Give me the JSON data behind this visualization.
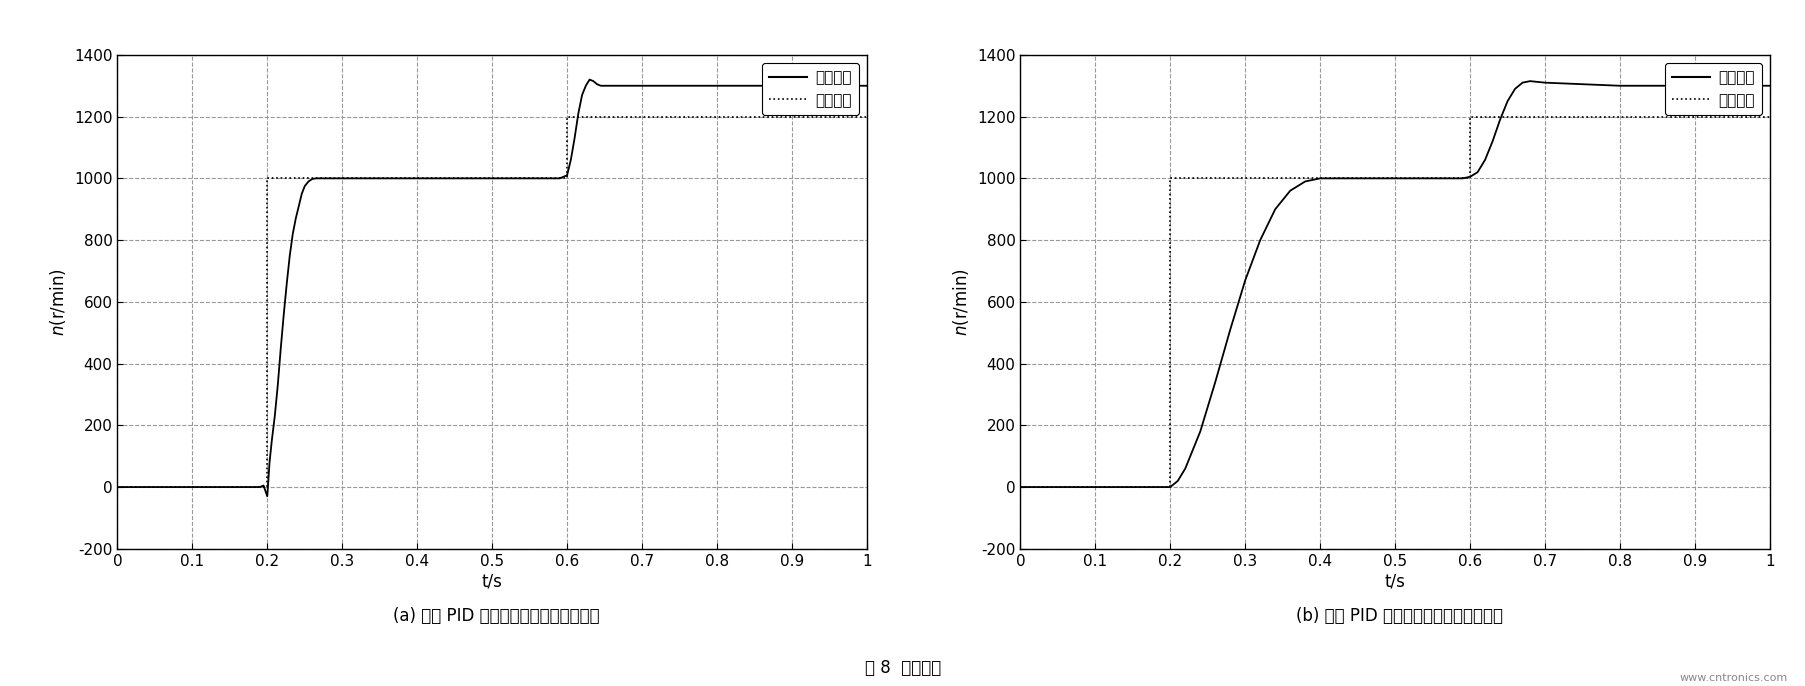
{
  "fig_width": 18.06,
  "fig_height": 6.86,
  "background_color": "#ffffff",
  "grid_color": "#aaaaaa",
  "line_color": "#000000",
  "xlim": [
    0,
    1
  ],
  "ylim": [
    -200,
    1400
  ],
  "xticks": [
    0,
    0.1,
    0.2,
    0.3,
    0.4,
    0.5,
    0.6,
    0.7,
    0.8,
    0.9,
    1
  ],
  "yticks": [
    -200,
    0,
    200,
    400,
    600,
    800,
    1000,
    1200,
    1400
  ],
  "xlabel": "t/s",
  "legend_labels": [
    "响应曲线",
    "输入信号"
  ],
  "caption_a": "(a) 常规 PID 控制下的系统跟踪特能曲线",
  "caption_b": "(b) 模糊 PID 控制下的系统跟踪特能曲线",
  "fig_caption": "图 8  实验结果",
  "website": "www.cntronics.com",
  "plot_a_response_x": [
    0,
    0.19,
    0.195,
    0.2,
    0.203,
    0.206,
    0.21,
    0.214,
    0.218,
    0.222,
    0.226,
    0.23,
    0.234,
    0.238,
    0.242,
    0.246,
    0.25,
    0.255,
    0.26,
    0.265,
    0.27,
    0.275,
    0.28,
    0.3,
    0.4,
    0.5,
    0.59,
    0.6,
    0.605,
    0.61,
    0.615,
    0.62,
    0.625,
    0.63,
    0.635,
    0.64,
    0.645,
    0.65,
    0.66,
    0.67,
    0.7,
    0.8,
    0.9,
    1.0
  ],
  "plot_a_response_y": [
    0,
    0,
    5,
    -30,
    80,
    150,
    230,
    330,
    450,
    560,
    660,
    750,
    820,
    870,
    910,
    950,
    975,
    990,
    998,
    1000,
    1000,
    1000,
    1000,
    1000,
    1000,
    1000,
    1000,
    1010,
    1060,
    1130,
    1210,
    1270,
    1300,
    1320,
    1315,
    1305,
    1300,
    1300,
    1300,
    1300,
    1300,
    1300,
    1300,
    1300
  ],
  "plot_a_input_x": [
    0,
    0.2,
    0.2,
    0.6,
    0.6,
    1.0
  ],
  "plot_a_input_y": [
    0,
    0,
    1000,
    1000,
    1200,
    1200
  ],
  "plot_b_response_x": [
    0,
    0.19,
    0.2,
    0.21,
    0.22,
    0.24,
    0.26,
    0.28,
    0.3,
    0.32,
    0.34,
    0.36,
    0.38,
    0.4,
    0.5,
    0.59,
    0.6,
    0.61,
    0.62,
    0.63,
    0.64,
    0.65,
    0.66,
    0.67,
    0.68,
    0.7,
    0.8,
    0.9,
    1.0
  ],
  "plot_b_response_y": [
    0,
    0,
    0,
    20,
    60,
    180,
    340,
    510,
    670,
    800,
    900,
    960,
    990,
    1000,
    1000,
    1000,
    1005,
    1020,
    1060,
    1120,
    1190,
    1250,
    1290,
    1310,
    1315,
    1310,
    1300,
    1300,
    1300
  ],
  "plot_b_input_x": [
    0,
    0.2,
    0.2,
    0.6,
    0.6,
    1.0
  ],
  "plot_b_input_y": [
    0,
    0,
    1000,
    1000,
    1200,
    1200
  ]
}
